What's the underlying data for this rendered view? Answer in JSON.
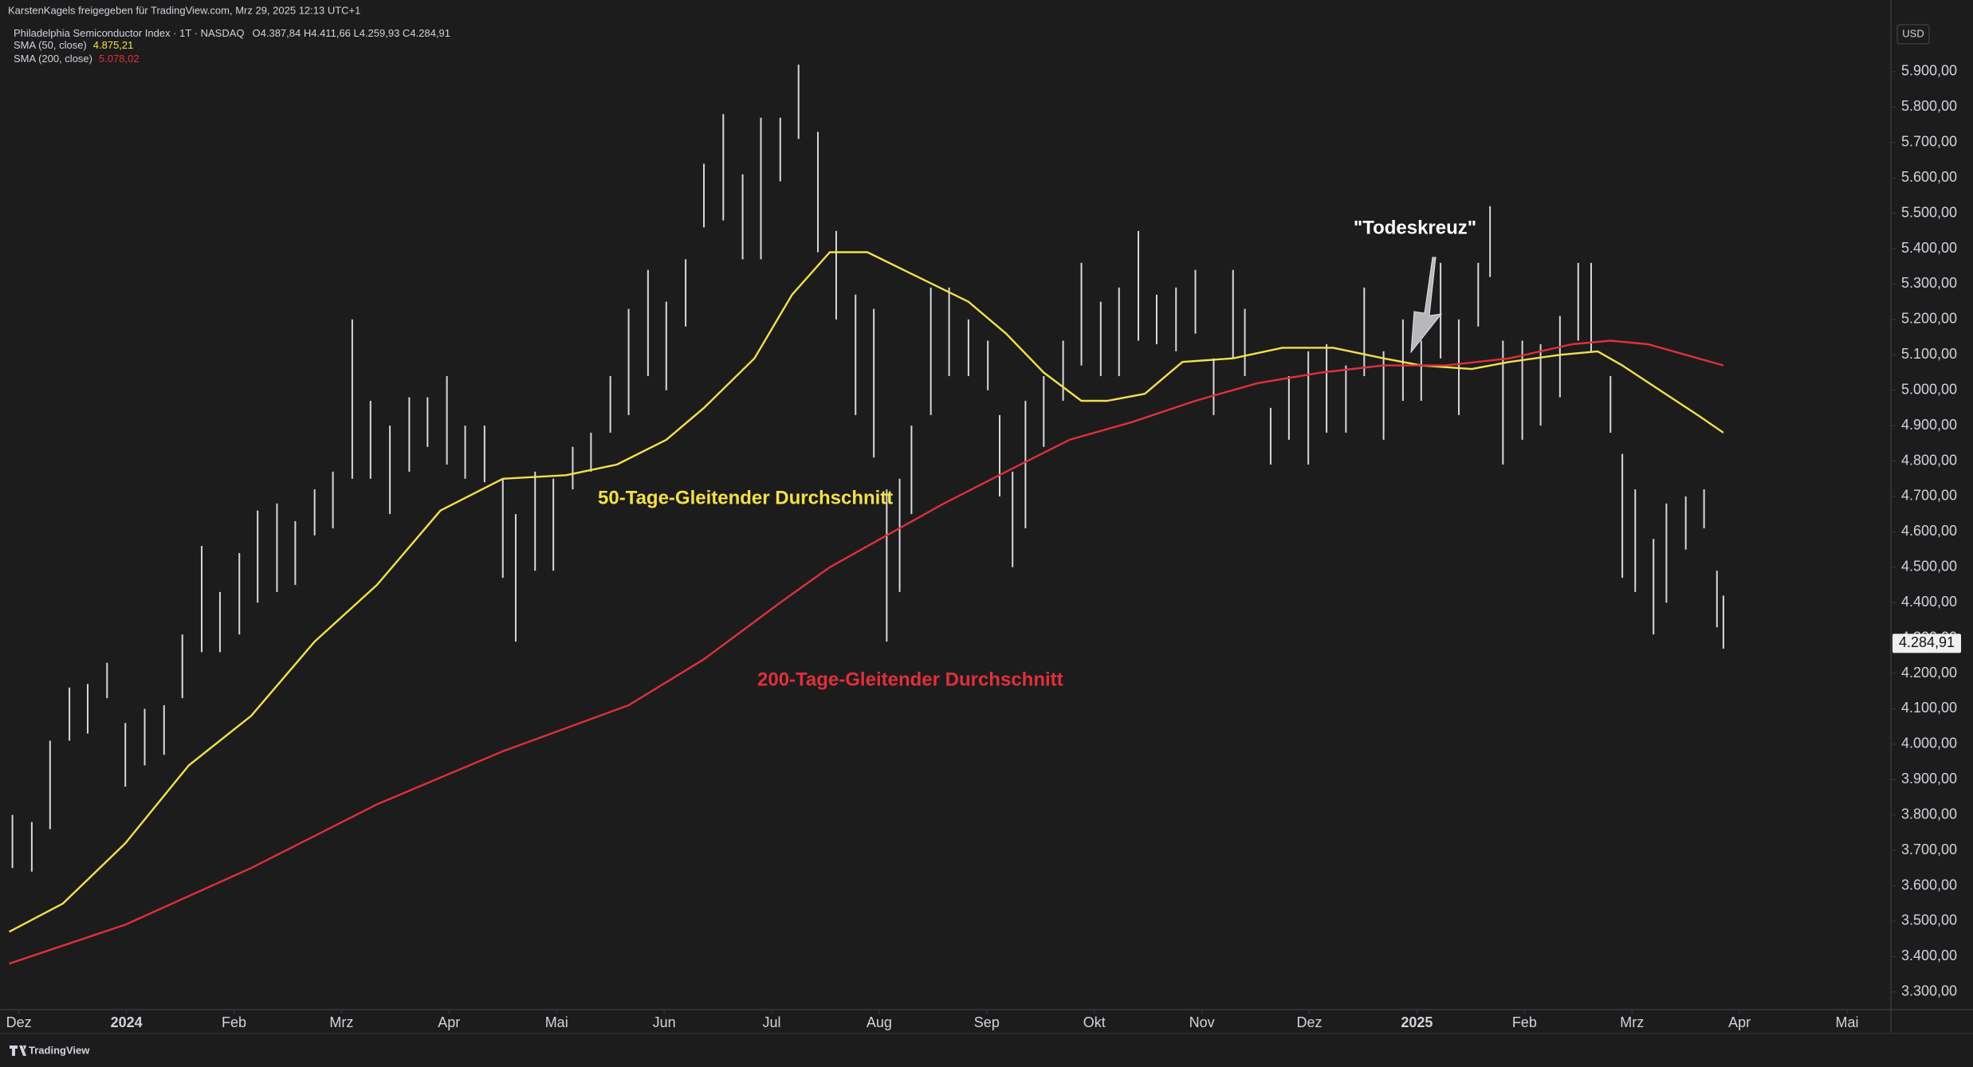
{
  "chart_data": {
    "type": "ohlc",
    "attribution": "KarstenKagels freigegeben für TradingView.com, Mrz 29, 2025 12:13 UTC+1",
    "title": "Philadelphia Semiconductor Index · 1T · NASDAQ",
    "ohlc_label": "O4.387,84 H4.411,66 L4.259,93 C4.284,91",
    "currency": "USD",
    "footer": "TradingView",
    "color": "#d6d8de",
    "grid": false,
    "xlim": [
      -0.1,
      17.4
    ],
    "ylim": [
      3250,
      6040
    ],
    "xticks": [
      {
        "value": 0,
        "label": "Dez"
      },
      {
        "value": 1,
        "label": "2024"
      },
      {
        "value": 2,
        "label": "Feb"
      },
      {
        "value": 3,
        "label": "Mrz"
      },
      {
        "value": 4,
        "label": "Apr"
      },
      {
        "value": 5,
        "label": "Mai"
      },
      {
        "value": 6,
        "label": "Jun"
      },
      {
        "value": 7,
        "label": "Jul"
      },
      {
        "value": 8,
        "label": "Aug"
      },
      {
        "value": 9,
        "label": "Sep"
      },
      {
        "value": 10,
        "label": "Okt"
      },
      {
        "value": 11,
        "label": "Nov"
      },
      {
        "value": 12,
        "label": "Dez"
      },
      {
        "value": 13,
        "label": "2025"
      },
      {
        "value": 14,
        "label": "Feb"
      },
      {
        "value": 15,
        "label": "Mrz"
      },
      {
        "value": 16,
        "label": "Apr"
      },
      {
        "value": 17,
        "label": "Mai"
      }
    ],
    "yticks": [
      {
        "value": 3300,
        "label": "3.300,00"
      },
      {
        "value": 3400,
        "label": "3.400,00"
      },
      {
        "value": 3500,
        "label": "3.500,00"
      },
      {
        "value": 3600,
        "label": "3.600,00"
      },
      {
        "value": 3700,
        "label": "3.700,00"
      },
      {
        "value": 3800,
        "label": "3.800,00"
      },
      {
        "value": 3900,
        "label": "3.900,00"
      },
      {
        "value": 4000,
        "label": "4.000,00"
      },
      {
        "value": 4100,
        "label": "4.100,00"
      },
      {
        "value": 4200,
        "label": "4.200,00"
      },
      {
        "value": 4300,
        "label": "4.300,00"
      },
      {
        "value": 4400,
        "label": "4.400,00"
      },
      {
        "value": 4500,
        "label": "4.500,00"
      },
      {
        "value": 4600,
        "label": "4.600,00"
      },
      {
        "value": 4700,
        "label": "4.700,00"
      },
      {
        "value": 4800,
        "label": "4.800,00"
      },
      {
        "value": 4900,
        "label": "4.900,00"
      },
      {
        "value": 5000,
        "label": "5.000,00"
      },
      {
        "value": 5100,
        "label": "5.100,00"
      },
      {
        "value": 5200,
        "label": "5.200,00"
      },
      {
        "value": 5300,
        "label": "5.300,00"
      },
      {
        "value": 5400,
        "label": "5.400,00"
      },
      {
        "value": 5500,
        "label": "5.500,00"
      },
      {
        "value": 5600,
        "label": "5.600,00"
      },
      {
        "value": 5700,
        "label": "5.700,00"
      },
      {
        "value": 5800,
        "label": "5.800,00"
      },
      {
        "value": 5900,
        "label": "5.900,00"
      }
    ],
    "x": [
      -0.06,
      0.12,
      0.29,
      0.47,
      0.64,
      0.82,
      0.99,
      1.17,
      1.35,
      1.52,
      1.7,
      1.87,
      2.05,
      2.22,
      2.4,
      2.57,
      2.75,
      2.92,
      3.1,
      3.27,
      3.45,
      3.63,
      3.8,
      3.98,
      4.15,
      4.33,
      4.5,
      4.62,
      4.8,
      4.97,
      5.15,
      5.32,
      5.5,
      5.67,
      5.85,
      6.02,
      6.2,
      6.37,
      6.55,
      6.73,
      6.9,
      7.08,
      7.25,
      7.43,
      7.6,
      7.78,
      7.95,
      8.07,
      8.19,
      8.3,
      8.48,
      8.65,
      8.83,
      9.01,
      9.12,
      9.24,
      9.36,
      9.53,
      9.71,
      9.88,
      10.06,
      10.23,
      10.41,
      10.58,
      10.76,
      10.94,
      11.11,
      11.29,
      11.4,
      11.64,
      11.81,
      11.99,
      12.16,
      12.34,
      12.51,
      12.69,
      12.87,
      13.04,
      13.22,
      13.39,
      13.57,
      13.68,
      13.8,
      13.98,
      14.15,
      14.33,
      14.5,
      14.62,
      14.8,
      14.91,
      15.03,
      15.2,
      15.32,
      15.5,
      15.67,
      15.79,
      15.85
    ],
    "high": [
      3800,
      3780,
      4010,
      4160,
      4170,
      4230,
      4060,
      4100,
      4110,
      4310,
      4560,
      4430,
      4540,
      4660,
      4680,
      4630,
      4720,
      4770,
      5200,
      4970,
      4900,
      4980,
      4980,
      5040,
      4900,
      4900,
      4750,
      4650,
      4770,
      4750,
      4840,
      4880,
      5040,
      5230,
      5340,
      5250,
      5370,
      5640,
      5780,
      5610,
      5770,
      5770,
      5920,
      5730,
      5450,
      5270,
      5230,
      4720,
      4750,
      4900,
      5290,
      5290,
      5200,
      5140,
      4930,
      4770,
      4970,
      5040,
      5140,
      5360,
      5250,
      5290,
      5450,
      5270,
      5290,
      5340,
      5090,
      5340,
      5230,
      4950,
      5040,
      5110,
      5130,
      5070,
      5290,
      5110,
      5200,
      5140,
      5360,
      5200,
      5360,
      5520,
      5140,
      5140,
      5130,
      5210,
      5360,
      5360,
      5040,
      4820,
      4720,
      4580,
      4680,
      4700,
      4720,
      4490,
      4420
    ],
    "low": [
      3650,
      3640,
      3760,
      4010,
      4030,
      4130,
      3880,
      3940,
      3970,
      4130,
      4260,
      4260,
      4310,
      4400,
      4430,
      4450,
      4590,
      4610,
      4750,
      4750,
      4650,
      4770,
      4840,
      4790,
      4750,
      4740,
      4470,
      4290,
      4490,
      4490,
      4720,
      4770,
      4880,
      4930,
      5040,
      5000,
      5180,
      5460,
      5480,
      5370,
      5370,
      5590,
      5710,
      5390,
      5200,
      4930,
      4810,
      4290,
      4430,
      4650,
      4930,
      5040,
      5040,
      5000,
      4700,
      4500,
      4610,
      4840,
      4970,
      5070,
      5040,
      5040,
      5140,
      5130,
      5110,
      5160,
      4930,
      5090,
      5040,
      4790,
      4860,
      4790,
      4880,
      4880,
      5040,
      4860,
      4970,
      4970,
      5090,
      4930,
      5180,
      5320,
      4790,
      4860,
      4900,
      4980,
      5140,
      5110,
      4880,
      4470,
      4430,
      4310,
      4400,
      4550,
      4610,
      4330,
      4270
    ],
    "last_price": {
      "value": 4284.91,
      "label": "4.284,91"
    },
    "series": [
      {
        "name": "SMA (50, close)",
        "last_label": "4.875,21",
        "color": "#f2e04b",
        "x": [
          -0.09,
          0.41,
          0.99,
          1.58,
          2.16,
          2.75,
          3.33,
          3.92,
          4.5,
          5.09,
          5.56,
          6.02,
          6.37,
          6.84,
          7.19,
          7.54,
          7.89,
          8.36,
          8.83,
          9.18,
          9.53,
          9.88,
          10.12,
          10.47,
          10.82,
          11.29,
          11.75,
          12.22,
          12.69,
          13.04,
          13.51,
          13.86,
          14.33,
          14.68,
          14.91,
          15.26,
          15.61,
          15.85
        ],
        "values": [
          3470,
          3550,
          3720,
          3940,
          4080,
          4290,
          4450,
          4660,
          4750,
          4760,
          4790,
          4860,
          4950,
          5090,
          5270,
          5390,
          5390,
          5320,
          5250,
          5160,
          5050,
          4970,
          4970,
          4990,
          5080,
          5090,
          5120,
          5120,
          5090,
          5070,
          5060,
          5080,
          5100,
          5110,
          5070,
          5000,
          4930,
          4880
        ]
      },
      {
        "name": "SMA (200, close)",
        "last_label": "5.078,02",
        "color": "#e0303b",
        "x": [
          -0.09,
          0.99,
          2.16,
          3.33,
          4.5,
          5.67,
          6.37,
          7.08,
          7.54,
          8.01,
          8.6,
          9.18,
          9.77,
          10.35,
          10.94,
          11.52,
          12.11,
          12.69,
          13.27,
          13.86,
          14.44,
          14.8,
          15.15,
          15.5,
          15.85
        ],
        "values": [
          3380,
          3490,
          3650,
          3830,
          3980,
          4110,
          4240,
          4400,
          4500,
          4580,
          4680,
          4770,
          4860,
          4910,
          4970,
          5020,
          5050,
          5070,
          5070,
          5090,
          5130,
          5140,
          5130,
          5100,
          5070
        ]
      }
    ],
    "annotations": [
      {
        "text": "50-Tage-Gleitender Durchschnitt",
        "color": "#f2e04b"
      },
      {
        "text": "200-Tage-Gleitender Durchschnitt",
        "color": "#e0303b"
      },
      {
        "text": "\"Todeskreuz\"",
        "color": "#ffffff"
      }
    ]
  }
}
